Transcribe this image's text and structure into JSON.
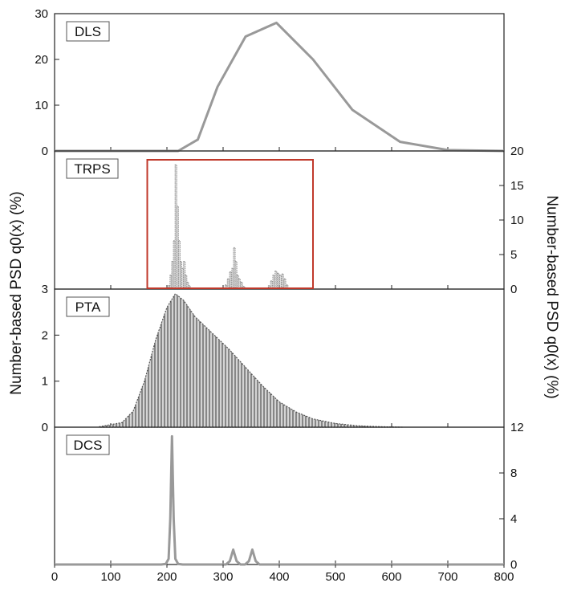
{
  "chart_data": {
    "type": "stacked-panels",
    "x_axis": {
      "range": [
        0,
        800
      ],
      "ticks": [
        "0",
        "100",
        "200",
        "300",
        "400",
        "500",
        "600",
        "700",
        "800"
      ]
    },
    "ylabel_left": "Number-based PSD q0(x) (%)",
    "ylabel_right": "Number-based PSD q0(x) (%)",
    "highlight_box": {
      "panel": "TRPS",
      "x_range": [
        165,
        460
      ],
      "color": "#c0392b"
    },
    "panels": [
      {
        "label": "DLS",
        "type": "line",
        "y_side": "left",
        "y_range": [
          0,
          30
        ],
        "y_ticks": [
          "0",
          "10",
          "20",
          "30"
        ],
        "series_color": "#999999",
        "x": [
          0,
          220,
          255,
          290,
          340,
          395,
          460,
          530,
          615,
          700,
          800
        ],
        "y": [
          0,
          0,
          2.5,
          14,
          25,
          28,
          20,
          9,
          2,
          0.2,
          0
        ]
      },
      {
        "label": "TRPS",
        "type": "bar",
        "y_side": "right",
        "y_range": [
          0,
          20
        ],
        "y_ticks": [
          "0",
          "5",
          "10",
          "15",
          "20"
        ],
        "series_color": "#8a8a8a",
        "x": [
          204,
          207,
          210,
          213,
          216,
          219,
          222,
          225,
          228,
          231,
          234,
          237,
          240,
          305,
          309,
          313,
          317,
          320,
          323,
          326,
          329,
          333,
          337,
          382,
          386,
          390,
          394,
          398,
          402,
          406,
          410,
          414
        ],
        "y": [
          0.5,
          2,
          4,
          7,
          18,
          12,
          7,
          4,
          3,
          4,
          2,
          1,
          0.5,
          0.6,
          1.5,
          2.5,
          3,
          6,
          4,
          2,
          1.5,
          1,
          0.4,
          0.5,
          1.2,
          2,
          2.6,
          2.3,
          2,
          2.2,
          1.5,
          0.6
        ]
      },
      {
        "label": "PTA",
        "type": "area",
        "y_side": "left",
        "y_range": [
          0,
          3
        ],
        "y_ticks": [
          "0",
          "1",
          "2",
          "3"
        ],
        "series_color": "#555555",
        "x": [
          80,
          120,
          140,
          160,
          180,
          200,
          215,
          230,
          250,
          280,
          310,
          340,
          370,
          400,
          430,
          460,
          500,
          540,
          580,
          620
        ],
        "y": [
          0.01,
          0.1,
          0.35,
          1.0,
          1.9,
          2.6,
          2.9,
          2.75,
          2.4,
          2.05,
          1.7,
          1.3,
          0.9,
          0.55,
          0.33,
          0.18,
          0.08,
          0.03,
          0.01,
          0
        ]
      },
      {
        "label": "DCS",
        "type": "line",
        "y_side": "right",
        "y_range": [
          0,
          12
        ],
        "y_ticks": [
          "0",
          "4",
          "8",
          "12"
        ],
        "series_color": "#999999",
        "x": [
          0,
          190,
          198,
          203,
          206,
          209,
          212,
          215,
          220,
          228,
          305,
          312,
          318,
          324,
          331,
          339,
          346,
          352,
          358,
          365,
          800
        ],
        "y": [
          0,
          0,
          0.05,
          0.5,
          4,
          11.2,
          4,
          0.5,
          0.05,
          0,
          0,
          0.3,
          1.3,
          0.3,
          0,
          0,
          0.3,
          1.3,
          0.3,
          0,
          0
        ]
      }
    ]
  }
}
